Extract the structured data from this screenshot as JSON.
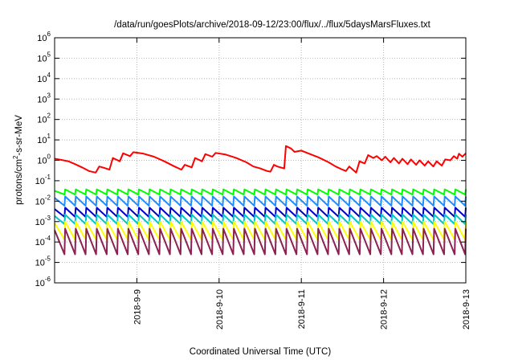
{
  "chart_data": {
    "type": "line",
    "title": "/data/run/goesPlots/archive/2018-09-12/23:00/flux/../flux/5daysMarsFluxes.txt",
    "xlabel": "Coordinated Universal Time (UTC)",
    "ylabel_parts": [
      "protons/cm",
      "2",
      "-s-sr-MeV"
    ],
    "y_scale": "log",
    "ylim": [
      1e-06,
      1000000.0
    ],
    "y_ticks": [
      {
        "base": "10",
        "exp": "-6",
        "value": 1e-06
      },
      {
        "base": "10",
        "exp": "-5",
        "value": 1e-05
      },
      {
        "base": "10",
        "exp": "-4",
        "value": 0.0001
      },
      {
        "base": "10",
        "exp": "-3",
        "value": 0.001
      },
      {
        "base": "10",
        "exp": "-2",
        "value": 0.01
      },
      {
        "base": "10",
        "exp": "-1",
        "value": 0.1
      },
      {
        "base": "10",
        "exp": "0",
        "value": 1
      },
      {
        "base": "10",
        "exp": "1",
        "value": 10
      },
      {
        "base": "10",
        "exp": "2",
        "value": 100
      },
      {
        "base": "10",
        "exp": "3",
        "value": 1000
      },
      {
        "base": "10",
        "exp": "4",
        "value": 10000
      },
      {
        "base": "10",
        "exp": "5",
        "value": 100000
      },
      {
        "base": "10",
        "exp": "6",
        "value": 1000000
      }
    ],
    "xlim": [
      "2018-09-08T00:00",
      "2018-09-13T00:00"
    ],
    "x_ticks": [
      {
        "label": "2018-9-9",
        "date": "2018-09-09T00:00"
      },
      {
        "label": "2018-9-10",
        "date": "2018-09-10T00:00"
      },
      {
        "label": "2018-9-11",
        "date": "2018-09-11T00:00"
      },
      {
        "label": "2018-9-12",
        "date": "2018-09-12T00:00"
      },
      {
        "label": "2018-9-13",
        "date": "2018-09-13T00:00"
      }
    ],
    "grid": true,
    "series": [
      {
        "color": "#ff0000",
        "points": [
          [
            "2018-09-08T00:00",
            1.2
          ],
          [
            "2018-09-08T02:00",
            1.05
          ],
          [
            "2018-09-08T04:00",
            0.9
          ],
          [
            "2018-09-08T06:00",
            0.65
          ],
          [
            "2018-09-08T08:00",
            0.45
          ],
          [
            "2018-09-08T10:00",
            0.3
          ],
          [
            "2018-09-08T12:00",
            0.25
          ],
          [
            "2018-09-08T13:00",
            0.5
          ],
          [
            "2018-09-08T14:00",
            0.45
          ],
          [
            "2018-09-08T16:00",
            0.35
          ],
          [
            "2018-09-08T17:00",
            1.3
          ],
          [
            "2018-09-08T19:00",
            0.9
          ],
          [
            "2018-09-08T20:00",
            2.2
          ],
          [
            "2018-09-08T22:00",
            1.6
          ],
          [
            "2018-09-08T23:00",
            2.5
          ],
          [
            "2018-09-09T02:00",
            2.1
          ],
          [
            "2018-09-09T05:00",
            1.5
          ],
          [
            "2018-09-09T08:00",
            0.9
          ],
          [
            "2018-09-09T11:00",
            0.5
          ],
          [
            "2018-09-09T13:00",
            0.35
          ],
          [
            "2018-09-09T14:00",
            0.6
          ],
          [
            "2018-09-09T16:00",
            0.45
          ],
          [
            "2018-09-09T17:00",
            1.3
          ],
          [
            "2018-09-09T19:00",
            0.9
          ],
          [
            "2018-09-09T20:00",
            2.0
          ],
          [
            "2018-09-09T22:00",
            1.5
          ],
          [
            "2018-09-09T23:00",
            2.3
          ],
          [
            "2018-09-10T02:00",
            1.9
          ],
          [
            "2018-09-10T05:00",
            1.3
          ],
          [
            "2018-09-10T08:00",
            0.8
          ],
          [
            "2018-09-10T10:00",
            0.5
          ],
          [
            "2018-09-10T12:00",
            0.4
          ],
          [
            "2018-09-10T14:00",
            0.3
          ],
          [
            "2018-09-10T15:00",
            0.28
          ],
          [
            "2018-09-10T16:00",
            0.6
          ],
          [
            "2018-09-10T17:00",
            0.5
          ],
          [
            "2018-09-10T19:00",
            0.4
          ],
          [
            "2018-09-10T19:30",
            5.0
          ],
          [
            "2018-09-10T21:00",
            3.8
          ],
          [
            "2018-09-10T22:00",
            2.6
          ],
          [
            "2018-09-11T00:00",
            3.0
          ],
          [
            "2018-09-11T02:00",
            2.2
          ],
          [
            "2018-09-11T05:00",
            1.4
          ],
          [
            "2018-09-11T08:00",
            0.8
          ],
          [
            "2018-09-11T10:00",
            0.5
          ],
          [
            "2018-09-11T12:00",
            0.35
          ],
          [
            "2018-09-11T13:00",
            0.3
          ],
          [
            "2018-09-11T14:00",
            0.5
          ],
          [
            "2018-09-11T16:00",
            0.25
          ],
          [
            "2018-09-11T17:00",
            0.9
          ],
          [
            "2018-09-11T18:30",
            0.7
          ],
          [
            "2018-09-11T19:30",
            1.8
          ],
          [
            "2018-09-11T21:00",
            1.3
          ],
          [
            "2018-09-11T22:00",
            1.6
          ],
          [
            "2018-09-11T23:30",
            1.0
          ],
          [
            "2018-09-12T00:30",
            1.5
          ],
          [
            "2018-09-12T02:00",
            0.8
          ],
          [
            "2018-09-12T03:00",
            1.3
          ],
          [
            "2018-09-12T04:30",
            0.7
          ],
          [
            "2018-09-12T05:30",
            1.2
          ],
          [
            "2018-09-12T07:00",
            0.65
          ],
          [
            "2018-09-12T08:00",
            1.1
          ],
          [
            "2018-09-12T09:30",
            0.6
          ],
          [
            "2018-09-12T10:30",
            1.0
          ],
          [
            "2018-09-12T12:00",
            0.55
          ],
          [
            "2018-09-12T13:00",
            0.9
          ],
          [
            "2018-09-12T14:30",
            0.5
          ],
          [
            "2018-09-12T15:30",
            0.9
          ],
          [
            "2018-09-12T17:00",
            0.55
          ],
          [
            "2018-09-12T18:00",
            1.1
          ],
          [
            "2018-09-12T19:30",
            1.0
          ],
          [
            "2018-09-12T20:30",
            1.6
          ],
          [
            "2018-09-12T21:30",
            1.2
          ],
          [
            "2018-09-12T22:00",
            2.1
          ],
          [
            "2018-09-12T23:00",
            1.5
          ],
          [
            "2018-09-13T00:00",
            2.2
          ]
        ]
      },
      {
        "color": "#00ff00",
        "pattern": "sawtooth",
        "cycles": 39,
        "low": 0.021,
        "high": 0.038
      },
      {
        "color": "#1f8cff",
        "pattern": "sawtooth",
        "cycles": 39,
        "low": 0.006,
        "high": 0.017
      },
      {
        "color": "#0000cc",
        "pattern": "sawtooth",
        "cycles": 39,
        "low": 0.0017,
        "high": 0.0048
      },
      {
        "color": "#00c8c8",
        "pattern": "sawtooth",
        "cycles": 39,
        "low": 0.00075,
        "high": 0.0022
      },
      {
        "color": "#ffff00",
        "pattern": "sawtooth",
        "cycles": 39,
        "low": 0.00013,
        "high": 0.001
      },
      {
        "color": "#8b2252",
        "pattern": "sawtooth",
        "cycles": 39,
        "low": 2.5e-05,
        "high": 0.00045
      }
    ]
  }
}
